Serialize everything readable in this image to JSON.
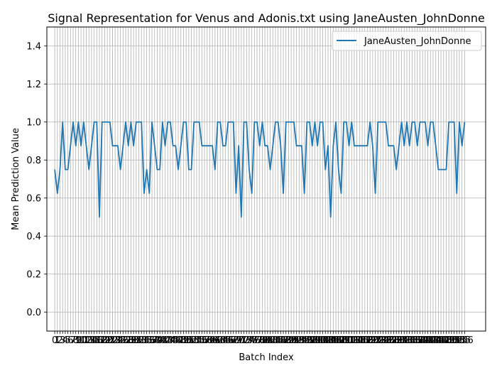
{
  "chart_data": {
    "type": "line",
    "title": "Signal Representation for Venus and Adonis.txt using JaneAusten_JohnDonne",
    "xlabel": "Batch Index",
    "ylabel": "Mean Prediction Value",
    "ylim": [
      -0.1,
      1.5
    ],
    "xlim": [
      -3,
      164
    ],
    "yticks": [
      "0.0",
      "0.2",
      "0.4",
      "0.6",
      "0.8",
      "1.0",
      "1.2",
      "1.4"
    ],
    "xtick_labels_visible": "0 2 3 4 5 6 7 8 9 10 11 12 13 … 153 (overlapping integer labels at every batch index)",
    "grid": true,
    "legend_position": "top-right",
    "series": [
      {
        "name": "JaneAusten_JohnDonne",
        "color": "#1f77b4",
        "x_start": 0,
        "values": [
          0.75,
          0.625,
          0.75,
          1.0,
          0.75,
          0.75,
          0.875,
          1.0,
          0.875,
          1.0,
          0.875,
          1.0,
          0.875,
          0.75,
          0.875,
          1.0,
          1.0,
          0.5,
          1.0,
          1.0,
          1.0,
          1.0,
          0.875,
          0.875,
          0.875,
          0.75,
          0.875,
          1.0,
          0.875,
          1.0,
          0.875,
          1.0,
          1.0,
          1.0,
          0.625,
          0.75,
          0.625,
          1.0,
          0.875,
          0.75,
          0.75,
          1.0,
          0.875,
          1.0,
          1.0,
          0.875,
          0.875,
          0.75,
          0.875,
          1.0,
          1.0,
          0.75,
          0.75,
          1.0,
          1.0,
          1.0,
          0.875,
          0.875,
          0.875,
          0.875,
          0.875,
          0.75,
          1.0,
          1.0,
          0.875,
          0.875,
          1.0,
          1.0,
          1.0,
          0.625,
          0.875,
          0.5,
          1.0,
          1.0,
          0.75,
          0.625,
          1.0,
          1.0,
          0.875,
          1.0,
          0.875,
          0.875,
          0.75,
          0.875,
          1.0,
          1.0,
          0.875,
          0.625,
          1.0,
          1.0,
          1.0,
          1.0,
          0.875,
          0.875,
          0.875,
          0.625,
          1.0,
          1.0,
          0.875,
          1.0,
          0.875,
          1.0,
          1.0,
          0.75,
          0.875,
          0.5,
          0.875,
          1.0,
          0.75,
          0.625,
          1.0,
          1.0,
          0.875,
          1.0,
          0.875,
          0.875,
          0.875,
          0.875,
          0.875,
          0.875,
          1.0,
          0.875,
          0.625,
          1.0,
          1.0,
          1.0,
          1.0,
          0.875,
          0.875,
          0.875,
          0.75,
          0.875,
          1.0,
          0.875,
          1.0,
          0.875,
          1.0,
          1.0,
          0.875,
          1.0,
          1.0,
          1.0,
          0.875,
          1.0,
          1.0,
          0.875,
          0.75,
          0.75,
          0.75,
          0.75,
          1.0,
          1.0,
          1.0,
          0.625,
          1.0,
          0.875,
          1.0
        ]
      }
    ]
  },
  "legend": {
    "entries": [
      "JaneAusten_JohnDonne"
    ]
  }
}
